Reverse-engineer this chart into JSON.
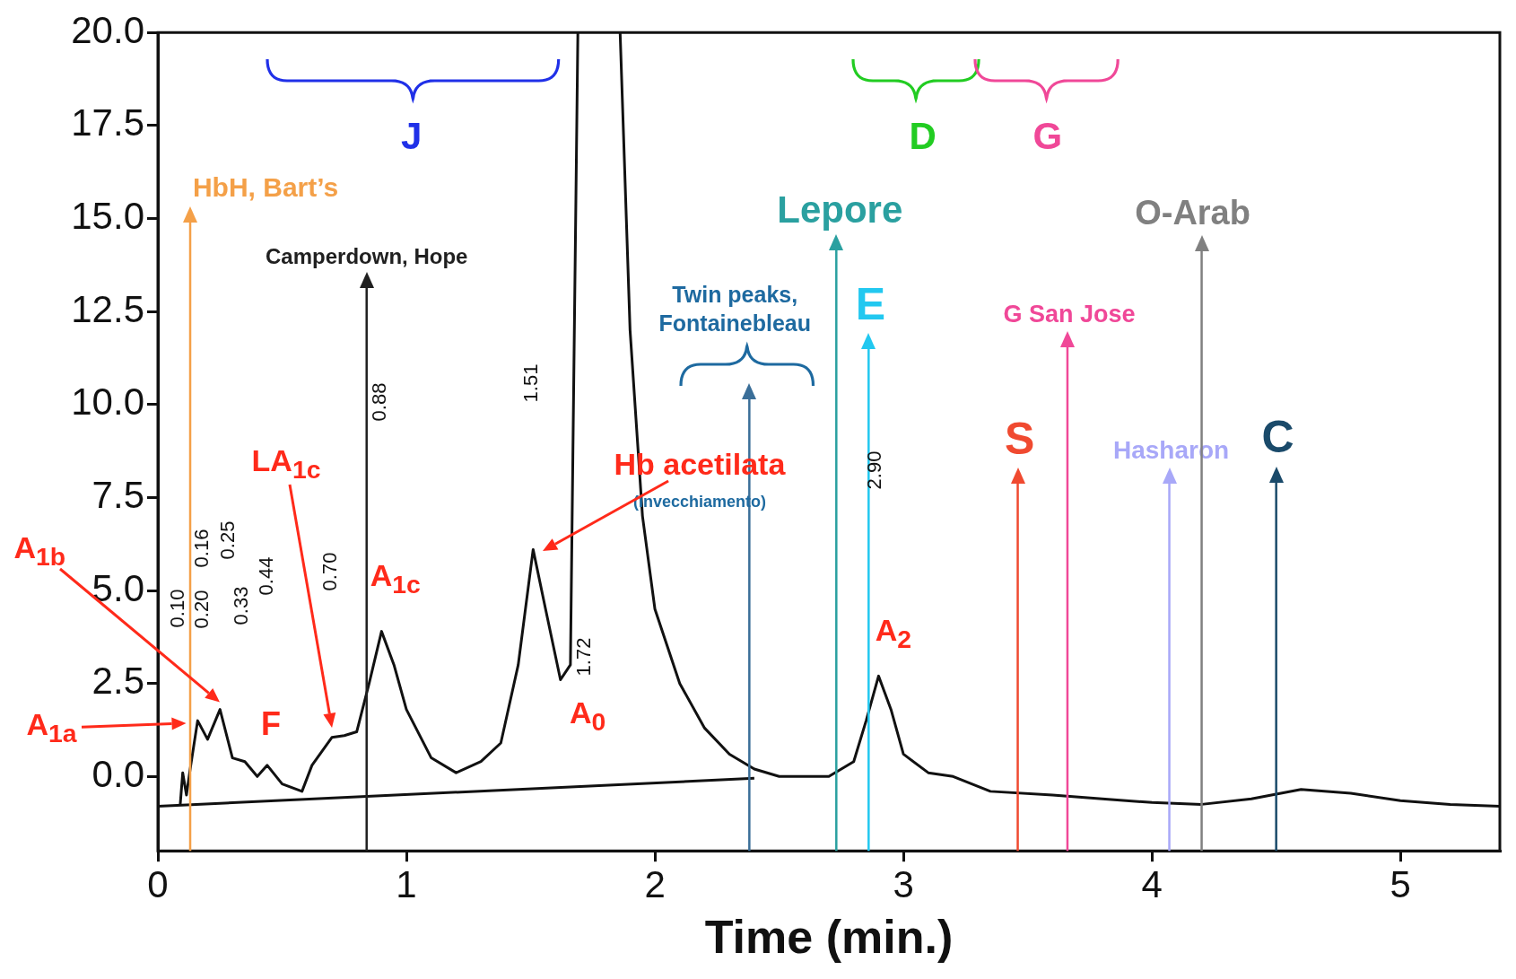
{
  "chart_data": {
    "type": "line",
    "xlabel": "Time (min.)",
    "xlim": [
      0,
      5.4
    ],
    "xticks": [
      0,
      1,
      2,
      3,
      4,
      5
    ],
    "ylim": [
      -2,
      20
    ],
    "yticks": [
      {
        "value": 0,
        "label": "0.0"
      },
      {
        "value": 2.5,
        "label": "2.5"
      },
      {
        "value": 5,
        "label": "5.0"
      },
      {
        "value": 7.5,
        "label": "7.5"
      },
      {
        "value": 10,
        "label": "10.0"
      },
      {
        "value": 12.5,
        "label": "12.5"
      },
      {
        "value": 15,
        "label": "15.0"
      },
      {
        "value": 17.5,
        "label": "17.5"
      },
      {
        "value": 20,
        "label": "20.0"
      }
    ],
    "grid": false,
    "legend": false,
    "marker": "none",
    "series": [
      {
        "color": "#111111",
        "x": [
          0.09,
          0.1,
          0.115,
          0.13,
          0.16,
          0.2,
          0.25,
          0.3,
          0.35,
          0.4,
          0.44,
          0.5,
          0.58,
          0.62,
          0.7,
          0.75,
          0.8,
          0.85,
          0.9,
          0.95,
          1.0,
          1.1,
          1.2,
          1.3,
          1.38,
          1.45,
          1.51,
          1.56,
          1.62,
          1.66,
          1.69,
          1.78,
          1.86,
          1.9,
          1.95,
          2.0,
          2.1,
          2.2,
          2.3,
          2.4,
          2.5,
          2.7,
          2.8,
          2.85,
          2.9,
          2.95,
          3.0,
          3.1,
          3.2,
          3.35,
          3.6,
          3.8,
          4.0,
          4.2,
          4.4,
          4.6,
          4.8,
          5.0,
          5.2,
          5.4
        ],
        "values": [
          -0.75,
          0.1,
          -0.5,
          0.2,
          1.5,
          1.0,
          1.8,
          0.5,
          0.4,
          0.0,
          0.3,
          -0.2,
          -0.4,
          0.3,
          1.05,
          1.1,
          1.2,
          2.5,
          3.9,
          3.0,
          1.8,
          0.5,
          0.1,
          0.4,
          0.9,
          3.0,
          6.1,
          4.5,
          2.6,
          3.0,
          20,
          null,
          20,
          12,
          7,
          4.5,
          2.5,
          1.3,
          0.6,
          0.2,
          0.0,
          0.0,
          0.4,
          1.5,
          2.7,
          1.8,
          0.6,
          0.1,
          0.0,
          -0.4,
          -0.5,
          -0.6,
          -0.7,
          -0.75,
          -0.6,
          -0.35,
          -0.45,
          -0.65,
          -0.75,
          -0.8
        ]
      },
      {
        "color": "#111111",
        "x": [
          0.0,
          2.4
        ],
        "values": [
          -0.8,
          -0.05
        ]
      }
    ],
    "ref_lines": [
      {
        "axis": "x",
        "value": 0.13,
        "label": "HbH, Bart’s",
        "color": "#f4a048"
      },
      {
        "axis": "x",
        "value": 0.84,
        "label": "Camperdown, Hope",
        "color": "#202020"
      },
      {
        "axis": "x",
        "value": 2.38,
        "label": null,
        "color": "#3a6e98"
      },
      {
        "axis": "x",
        "value": 2.73,
        "label": "Lepore",
        "color": "#2aa0a0"
      },
      {
        "axis": "x",
        "value": 2.86,
        "label": "E",
        "color": "#22c8f0"
      },
      {
        "axis": "x",
        "value": 3.46,
        "label": "S",
        "color": "#f04a30"
      },
      {
        "axis": "x",
        "value": 3.66,
        "label": "G San Jose",
        "color": "#f04898"
      },
      {
        "axis": "x",
        "value": 4.07,
        "label": "Hasharon",
        "color": "#a8a8f8"
      },
      {
        "axis": "x",
        "value": 4.2,
        "label": "O-Arab",
        "color": "#808080"
      },
      {
        "axis": "x",
        "value": 4.5,
        "label": "C",
        "color": "#1a4a6a"
      }
    ],
    "annotations": [
      "0.10",
      "0.16",
      "0.20",
      "0.25",
      "0.33",
      "0.44",
      "0.70",
      "0.88",
      "1.51",
      "1.72",
      "2.90",
      "A$_{1a}$",
      "A$_{1b}$",
      "F",
      "LA$_{1c}$",
      "A$_{1c}$",
      "Hb acetilata",
      "(Invecchiamento)",
      "A$_{0}$",
      "A$_{2}$",
      "J",
      "D",
      "G",
      "Twin peaks, Fontainebleau"
    ]
  }
}
